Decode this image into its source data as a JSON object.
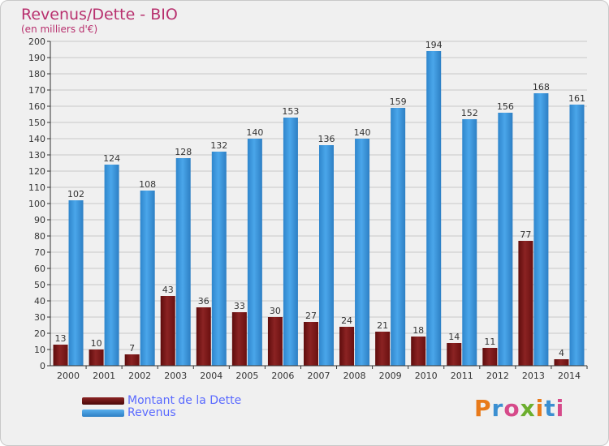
{
  "chart_data": {
    "type": "bar",
    "title": "Revenus/Dette - BIO",
    "subtitle": "(en milliers d'€)",
    "xlabel": "",
    "ylabel": "",
    "ylim": [
      0,
      200
    ],
    "ytick_step": 10,
    "grid": true,
    "categories": [
      "2000",
      "2001",
      "2002",
      "2003",
      "2004",
      "2005",
      "2006",
      "2007",
      "2008",
      "2009",
      "2010",
      "2011",
      "2012",
      "2013",
      "2014"
    ],
    "series": [
      {
        "name": "Montant de la Dette",
        "color": "#8b1a1a",
        "values": [
          13,
          10,
          7,
          43,
          36,
          33,
          30,
          27,
          24,
          21,
          18,
          14,
          11,
          77,
          4
        ]
      },
      {
        "name": "Revenus",
        "color": "#3b97dd",
        "values": [
          102,
          124,
          108,
          128,
          132,
          140,
          153,
          136,
          140,
          159,
          194,
          152,
          156,
          168,
          161
        ]
      }
    ],
    "legend_position": "bottom-left"
  },
  "logo": {
    "text": "Proxiti",
    "colors": [
      "#e87a1a",
      "#3b8fd1",
      "#d64a8a",
      "#6cae2e"
    ]
  }
}
